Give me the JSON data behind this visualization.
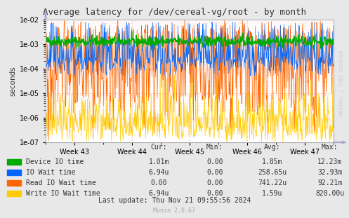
{
  "title": "Average latency for /dev/cereal-vg/root - by month",
  "ylabel": "seconds",
  "rrdtool_label": "RRDTOOL / TOBI OETIKER",
  "munin_label": "Munin 2.0.67",
  "last_update": "Last update: Thu Nov 21 09:55:56 2024",
  "week_labels": [
    "Week 43",
    "Week 44",
    "Week 45",
    "Week 46",
    "Week 47"
  ],
  "background_color": "#e8e8e8",
  "plot_bg_color": "#ffffff",
  "grid_major_color": "#ff9999",
  "grid_minor_color": "#ffcccc",
  "arrow_color": "#aaaacc",
  "border_color": "#aaaaaa",
  "series": [
    {
      "name": "Device IO time",
      "color": "#00aa00",
      "cur": "1.01m",
      "min": "0.00",
      "avg": "1.85m",
      "max": "12.23m"
    },
    {
      "name": "IO Wait time",
      "color": "#0066ff",
      "cur": "6.94u",
      "min": "0.00",
      "avg": "258.65u",
      "max": "32.93m"
    },
    {
      "name": "Read IO Wait time",
      "color": "#ff6600",
      "cur": "0.00",
      "min": "0.00",
      "avg": "741.22u",
      "max": "92.21m"
    },
    {
      "name": "Write IO Wait time",
      "color": "#ffcc00",
      "cur": "6.94u",
      "min": "0.00",
      "avg": "1.59u",
      "max": "820.00u"
    }
  ],
  "col_headers": [
    "Cur:",
    "Min:",
    "Avg:",
    "Max:"
  ],
  "n_points": 700,
  "seed": 42
}
